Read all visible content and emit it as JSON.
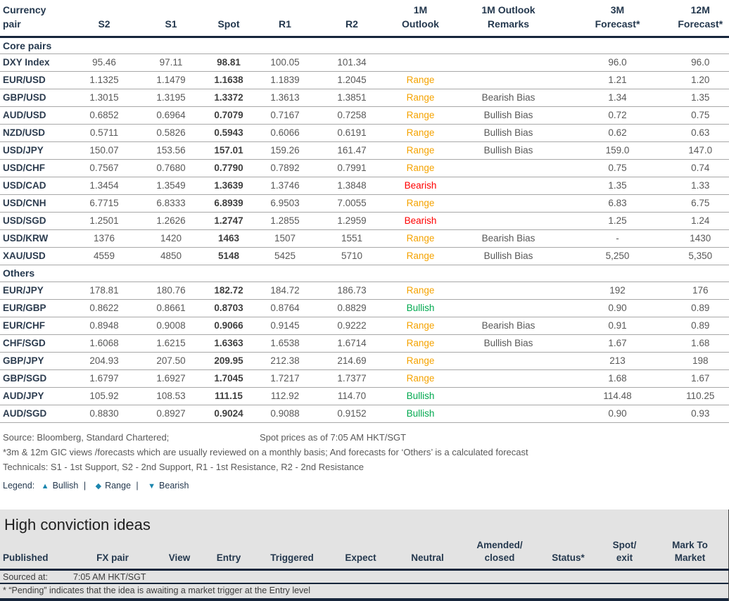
{
  "colors": {
    "navy_text": "#24384E",
    "dark_rule": "#16253B",
    "row_rule": "#A8A8A8",
    "number_text": "#595959",
    "outlook_orange": "#F5A300",
    "outlook_red": "#FF0000",
    "outlook_green": "#00A94F",
    "legend_symbol_teal": "#1C86AE",
    "band_gray": "#E3E3E3"
  },
  "fx_table": {
    "columns": [
      {
        "id": "pair",
        "label": "Currency\npair"
      },
      {
        "id": "s2",
        "label": "S2"
      },
      {
        "id": "s1",
        "label": "S1"
      },
      {
        "id": "spot",
        "label": "Spot"
      },
      {
        "id": "r1",
        "label": "R1"
      },
      {
        "id": "r2",
        "label": "R2"
      },
      {
        "id": "outlook",
        "label": "1M\nOutlook"
      },
      {
        "id": "remarks",
        "label": "1M Outlook\nRemarks"
      },
      {
        "id": "f3m",
        "label": "3M\nForecast*"
      },
      {
        "id": "f12m",
        "label": "12M\nForecast*"
      }
    ],
    "sections": [
      {
        "label": "Core pairs",
        "rows": [
          {
            "pair": "DXY Index",
            "s2": "95.46",
            "s1": "97.11",
            "spot": "98.81",
            "r1": "100.05",
            "r2": "101.34",
            "outlook": "",
            "outlook_color": "",
            "remarks": "",
            "f3m": "96.0",
            "f12m": "96.0"
          },
          {
            "pair": "EUR/USD",
            "s2": "1.1325",
            "s1": "1.1479",
            "spot": "1.1638",
            "r1": "1.1839",
            "r2": "1.2045",
            "outlook": "Range",
            "outlook_color": "orange",
            "remarks": "",
            "f3m": "1.21",
            "f12m": "1.20"
          },
          {
            "pair": "GBP/USD",
            "s2": "1.3015",
            "s1": "1.3195",
            "spot": "1.3372",
            "r1": "1.3613",
            "r2": "1.3851",
            "outlook": "Range",
            "outlook_color": "orange",
            "remarks": "Bearish Bias",
            "f3m": "1.34",
            "f12m": "1.35"
          },
          {
            "pair": "AUD/USD",
            "s2": "0.6852",
            "s1": "0.6964",
            "spot": "0.7079",
            "r1": "0.7167",
            "r2": "0.7258",
            "outlook": "Range",
            "outlook_color": "orange",
            "remarks": "Bullish Bias",
            "f3m": "0.72",
            "f12m": "0.75"
          },
          {
            "pair": "NZD/USD",
            "s2": "0.5711",
            "s1": "0.5826",
            "spot": "0.5943",
            "r1": "0.6066",
            "r2": "0.6191",
            "outlook": "Range",
            "outlook_color": "orange",
            "remarks": "Bullish Bias",
            "f3m": "0.62",
            "f12m": "0.63"
          },
          {
            "pair": "USD/JPY",
            "s2": "150.07",
            "s1": "153.56",
            "spot": "157.01",
            "r1": "159.26",
            "r2": "161.47",
            "outlook": "Range",
            "outlook_color": "orange",
            "remarks": "Bullish Bias",
            "f3m": "159.0",
            "f12m": "147.0"
          },
          {
            "pair": "USD/CHF",
            "s2": "0.7567",
            "s1": "0.7680",
            "spot": "0.7790",
            "r1": "0.7892",
            "r2": "0.7991",
            "outlook": "Range",
            "outlook_color": "orange",
            "remarks": "",
            "f3m": "0.75",
            "f12m": "0.74"
          },
          {
            "pair": "USD/CAD",
            "s2": "1.3454",
            "s1": "1.3549",
            "spot": "1.3639",
            "r1": "1.3746",
            "r2": "1.3848",
            "outlook": "Bearish",
            "outlook_color": "red",
            "remarks": "",
            "f3m": "1.35",
            "f12m": "1.33"
          },
          {
            "pair": "USD/CNH",
            "s2": "6.7715",
            "s1": "6.8333",
            "spot": "6.8939",
            "r1": "6.9503",
            "r2": "7.0055",
            "outlook": "Range",
            "outlook_color": "orange",
            "remarks": "",
            "f3m": "6.83",
            "f12m": "6.75"
          },
          {
            "pair": "USD/SGD",
            "s2": "1.2501",
            "s1": "1.2626",
            "spot": "1.2747",
            "r1": "1.2855",
            "r2": "1.2959",
            "outlook": "Bearish",
            "outlook_color": "red",
            "remarks": "",
            "f3m": "1.25",
            "f12m": "1.24"
          },
          {
            "pair": "USD/KRW",
            "s2": "1376",
            "s1": "1420",
            "spot": "1463",
            "r1": "1507",
            "r2": "1551",
            "outlook": "Range",
            "outlook_color": "orange",
            "remarks": "Bearish Bias",
            "f3m": "-",
            "f12m": "1430"
          },
          {
            "pair": "XAU/USD",
            "s2": "4559",
            "s1": "4850",
            "spot": "5148",
            "r1": "5425",
            "r2": "5710",
            "outlook": "Range",
            "outlook_color": "orange",
            "remarks": "Bullish Bias",
            "f3m": "5,250",
            "f12m": "5,350"
          }
        ]
      },
      {
        "label": "Others",
        "rows": [
          {
            "pair": "EUR/JPY",
            "s2": "178.81",
            "s1": "180.76",
            "spot": "182.72",
            "r1": "184.72",
            "r2": "186.73",
            "outlook": "Range",
            "outlook_color": "orange",
            "remarks": "",
            "f3m": "192",
            "f12m": "176"
          },
          {
            "pair": "EUR/GBP",
            "s2": "0.8622",
            "s1": "0.8661",
            "spot": "0.8703",
            "r1": "0.8764",
            "r2": "0.8829",
            "outlook": "Bullish",
            "outlook_color": "green",
            "remarks": "",
            "f3m": "0.90",
            "f12m": "0.89"
          },
          {
            "pair": "EUR/CHF",
            "s2": "0.8948",
            "s1": "0.9008",
            "spot": "0.9066",
            "r1": "0.9145",
            "r2": "0.9222",
            "outlook": "Range",
            "outlook_color": "orange",
            "remarks": "Bearish Bias",
            "f3m": "0.91",
            "f12m": "0.89"
          },
          {
            "pair": "CHF/SGD",
            "s2": "1.6068",
            "s1": "1.6215",
            "spot": "1.6363",
            "r1": "1.6538",
            "r2": "1.6714",
            "outlook": "Range",
            "outlook_color": "orange",
            "remarks": "Bullish Bias",
            "f3m": "1.67",
            "f12m": "1.68"
          },
          {
            "pair": "GBP/JPY",
            "s2": "204.93",
            "s1": "207.50",
            "spot": "209.95",
            "r1": "212.38",
            "r2": "214.69",
            "outlook": "Range",
            "outlook_color": "orange",
            "remarks": "",
            "f3m": "213",
            "f12m": "198"
          },
          {
            "pair": "GBP/SGD",
            "s2": "1.6797",
            "s1": "1.6927",
            "spot": "1.7045",
            "r1": "1.7217",
            "r2": "1.7377",
            "outlook": "Range",
            "outlook_color": "orange",
            "remarks": "",
            "f3m": "1.68",
            "f12m": "1.67"
          },
          {
            "pair": "AUD/JPY",
            "s2": "105.92",
            "s1": "108.53",
            "spot": "111.15",
            "r1": "112.92",
            "r2": "114.70",
            "outlook": "Bullish",
            "outlook_color": "green",
            "remarks": "",
            "f3m": "114.48",
            "f12m": "110.25"
          },
          {
            "pair": "AUD/SGD",
            "s2": "0.8830",
            "s1": "0.8927",
            "spot": "0.9024",
            "r1": "0.9088",
            "r2": "0.9152",
            "outlook": "Bullish",
            "outlook_color": "green",
            "remarks": "",
            "f3m": "0.90",
            "f12m": "0.93"
          }
        ]
      }
    ]
  },
  "footnotes": {
    "source": "Source: Bloomberg, Standard Chartered;",
    "spot_time": "Spot prices as of 7:05 AM HKT/SGT",
    "forecast_note": "*3m & 12m GIC views /forecasts which are usually reviewed on a monthly basis; And forecasts for ‘Others’ is a calculated forecast",
    "technicals_note": "Technicals: S1 - 1st Support, S2 - 2nd Support, R1 - 1st Resistance, R2 - 2nd Resistance"
  },
  "legend": {
    "label": "Legend:",
    "separator": "|",
    "items": [
      {
        "symbol": "▲",
        "label": "Bullish"
      },
      {
        "symbol": "◆",
        "label": "Range"
      },
      {
        "symbol": "▼",
        "label": "Bearish"
      }
    ]
  },
  "hci": {
    "title": "High conviction ideas",
    "columns": [
      {
        "id": "published",
        "label": "Published"
      },
      {
        "id": "fx-pair",
        "label": "FX pair"
      },
      {
        "id": "view",
        "label": "View"
      },
      {
        "id": "entry",
        "label": "Entry"
      },
      {
        "id": "triggered",
        "label": "Triggered"
      },
      {
        "id": "expect",
        "label": "Expect"
      },
      {
        "id": "neutral",
        "label": "Neutral"
      },
      {
        "id": "amended-closed",
        "label": "Amended/\nclosed"
      },
      {
        "id": "status",
        "label": "Status*"
      },
      {
        "id": "spot-exit",
        "label": "Spot/\nexit"
      },
      {
        "id": "mark-to-market",
        "label": "Mark To\nMarket"
      }
    ],
    "sourced_label": "Sourced at:",
    "sourced_value": "7:05 AM HKT/SGT",
    "pending_note": "* “Pending” indicates that the idea is awaiting a market trigger at the Entry level"
  }
}
